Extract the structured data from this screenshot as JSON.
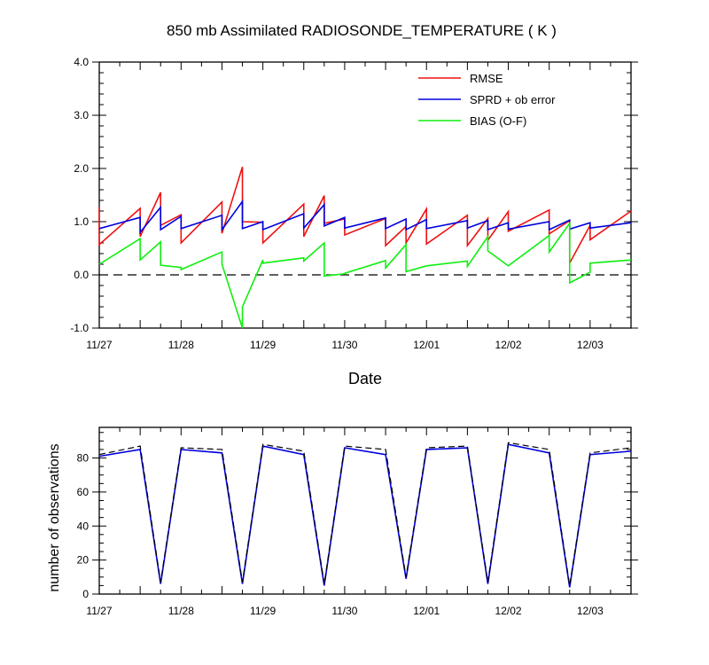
{
  "title": "850 mb Assimilated RADIOSONDE_TEMPERATURE ( K )",
  "colors": {
    "rmse": "#ee1111",
    "sprd": "#0000dd",
    "bias": "#11ee11",
    "reference": "#000000"
  },
  "chart_data": [
    {
      "type": "line",
      "title": "850 mb Assimilated RADIOSONDE_TEMPERATURE ( K )",
      "xlabel": "Date",
      "ylabel": "",
      "xlim": [
        0,
        6.5
      ],
      "ylim": [
        -1.0,
        4.0
      ],
      "x_tick_labels": [
        "11/27",
        "11/28",
        "11/29",
        "11/30",
        "12/01",
        "12/02",
        "12/03"
      ],
      "y_tick_labels": [
        "-1.0",
        "0.0",
        "1.0",
        "2.0",
        "3.0",
        "4.0"
      ],
      "y_tick_values": [
        -1.0,
        0.0,
        1.0,
        2.0,
        3.0,
        4.0
      ],
      "reference_line": 0.0,
      "legend": [
        "RMSE",
        "SPRD + ob error",
        "BIAS (O-F)"
      ],
      "legend_position": "top-right",
      "series": [
        {
          "name": "RMSE",
          "color_key": "rmse",
          "points": [
            [
              0,
              1.28
            ],
            [
              0,
              0.57
            ],
            [
              0.5,
              1.25
            ],
            [
              0.5,
              0.72
            ],
            [
              0.75,
              1.55
            ],
            [
              0.75,
              0.93
            ],
            [
              1.0,
              1.13
            ],
            [
              1.0,
              0.6
            ],
            [
              1.5,
              1.37
            ],
            [
              1.5,
              0.78
            ],
            [
              1.75,
              2.03
            ],
            [
              1.75,
              1.0
            ],
            [
              2.0,
              0.99
            ],
            [
              2.0,
              0.6
            ],
            [
              2.5,
              1.33
            ],
            [
              2.5,
              0.72
            ],
            [
              2.75,
              1.49
            ],
            [
              2.75,
              0.97
            ],
            [
              3.0,
              1.05
            ],
            [
              3.0,
              0.75
            ],
            [
              3.5,
              1.06
            ],
            [
              3.5,
              0.55
            ],
            [
              3.75,
              0.91
            ],
            [
              3.75,
              0.6
            ],
            [
              4.0,
              1.24
            ],
            [
              4.0,
              0.58
            ],
            [
              4.5,
              1.12
            ],
            [
              4.5,
              0.55
            ],
            [
              4.75,
              1.06
            ],
            [
              4.75,
              0.65
            ],
            [
              5.0,
              1.19
            ],
            [
              5.0,
              0.82
            ],
            [
              5.5,
              1.22
            ],
            [
              5.5,
              0.77
            ],
            [
              5.75,
              1.02
            ],
            [
              5.75,
              0.22
            ],
            [
              6.0,
              0.93
            ],
            [
              6.0,
              0.66
            ],
            [
              6.5,
              1.2
            ]
          ]
        },
        {
          "name": "SPRD + ob error",
          "color_key": "sprd",
          "points": [
            [
              0,
              0.87
            ],
            [
              0.5,
              1.08
            ],
            [
              0.5,
              0.8
            ],
            [
              0.75,
              1.27
            ],
            [
              0.75,
              0.85
            ],
            [
              1.0,
              1.1
            ],
            [
              1.0,
              0.87
            ],
            [
              1.5,
              1.12
            ],
            [
              1.5,
              0.85
            ],
            [
              1.75,
              1.38
            ],
            [
              1.75,
              0.87
            ],
            [
              2.0,
              1.0
            ],
            [
              2.0,
              0.85
            ],
            [
              2.5,
              1.15
            ],
            [
              2.5,
              0.88
            ],
            [
              2.75,
              1.32
            ],
            [
              2.75,
              0.92
            ],
            [
              3.0,
              1.08
            ],
            [
              3.0,
              0.88
            ],
            [
              3.5,
              1.07
            ],
            [
              3.5,
              0.87
            ],
            [
              3.75,
              1.05
            ],
            [
              3.75,
              0.85
            ],
            [
              4.0,
              1.04
            ],
            [
              4.0,
              0.87
            ],
            [
              4.5,
              1.02
            ],
            [
              4.5,
              0.88
            ],
            [
              4.75,
              1.02
            ],
            [
              4.75,
              0.85
            ],
            [
              5.0,
              0.98
            ],
            [
              5.0,
              0.86
            ],
            [
              5.5,
              1.0
            ],
            [
              5.5,
              0.85
            ],
            [
              5.75,
              1.03
            ],
            [
              5.75,
              0.86
            ],
            [
              6.0,
              0.98
            ],
            [
              6.0,
              0.88
            ],
            [
              6.5,
              0.98
            ]
          ]
        },
        {
          "name": "BIAS (O-F)",
          "color_key": "bias",
          "points": [
            [
              0,
              0.2
            ],
            [
              0.5,
              0.68
            ],
            [
              0.5,
              0.28
            ],
            [
              0.75,
              0.62
            ],
            [
              0.75,
              0.18
            ],
            [
              1.0,
              0.14
            ],
            [
              1.0,
              0.1
            ],
            [
              1.5,
              0.43
            ],
            [
              1.5,
              0.2
            ],
            [
              1.75,
              -1.0
            ],
            [
              1.75,
              -0.6
            ],
            [
              2.0,
              0.28
            ],
            [
              2.0,
              0.22
            ],
            [
              2.5,
              0.32
            ],
            [
              2.5,
              0.26
            ],
            [
              2.75,
              0.6
            ],
            [
              2.75,
              -0.02
            ],
            [
              3.0,
              0.02
            ],
            [
              3.0,
              0.03
            ],
            [
              3.5,
              0.27
            ],
            [
              3.5,
              0.13
            ],
            [
              3.75,
              0.57
            ],
            [
              3.75,
              0.06
            ],
            [
              4.0,
              0.17
            ],
            [
              4.5,
              0.26
            ],
            [
              4.5,
              0.16
            ],
            [
              4.75,
              0.72
            ],
            [
              4.75,
              0.45
            ],
            [
              5.0,
              0.17
            ],
            [
              5.5,
              0.74
            ],
            [
              5.5,
              0.43
            ],
            [
              5.75,
              0.97
            ],
            [
              5.75,
              -0.15
            ],
            [
              6.0,
              0.05
            ],
            [
              6.0,
              0.22
            ],
            [
              6.5,
              0.28
            ]
          ]
        }
      ]
    },
    {
      "type": "line",
      "title": "",
      "xlabel": "",
      "ylabel": "number of observations",
      "xlim": [
        0,
        6.5
      ],
      "ylim": [
        0,
        98
      ],
      "x_tick_labels": [
        "11/27",
        "11/28",
        "11/29",
        "11/30",
        "12/01",
        "12/02",
        "12/03"
      ],
      "y_tick_labels": [
        "0",
        "20",
        "40",
        "60",
        "80"
      ],
      "y_tick_values": [
        0,
        20,
        40,
        60,
        80
      ],
      "series": [
        {
          "name": "observations (solid)",
          "color_key": "sprd",
          "style": "solid",
          "points": [
            [
              0,
              81
            ],
            [
              0.5,
              85
            ],
            [
              0.75,
              6
            ],
            [
              1.0,
              85
            ],
            [
              1.5,
              83
            ],
            [
              1.75,
              6
            ],
            [
              2.0,
              87
            ],
            [
              2.5,
              82
            ],
            [
              2.75,
              5
            ],
            [
              3.0,
              86
            ],
            [
              3.5,
              82
            ],
            [
              3.75,
              9
            ],
            [
              4.0,
              85
            ],
            [
              4.5,
              86
            ],
            [
              4.75,
              6
            ],
            [
              5.0,
              88
            ],
            [
              5.5,
              83
            ],
            [
              5.75,
              4
            ],
            [
              6.0,
              82
            ],
            [
              6.5,
              84
            ]
          ]
        },
        {
          "name": "observations (dashed)",
          "color_key": "reference",
          "style": "dashed",
          "points": [
            [
              0,
              82
            ],
            [
              0.5,
              87
            ],
            [
              0.75,
              7
            ],
            [
              1.0,
              86
            ],
            [
              1.5,
              85
            ],
            [
              1.75,
              7
            ],
            [
              2.0,
              88
            ],
            [
              2.5,
              84
            ],
            [
              2.75,
              6
            ],
            [
              3.0,
              87
            ],
            [
              3.5,
              85
            ],
            [
              3.75,
              10
            ],
            [
              4.0,
              86
            ],
            [
              4.5,
              87
            ],
            [
              4.75,
              7
            ],
            [
              5.0,
              89
            ],
            [
              5.5,
              85
            ],
            [
              5.75,
              5
            ],
            [
              6.0,
              83
            ],
            [
              6.5,
              86
            ]
          ]
        }
      ]
    }
  ]
}
